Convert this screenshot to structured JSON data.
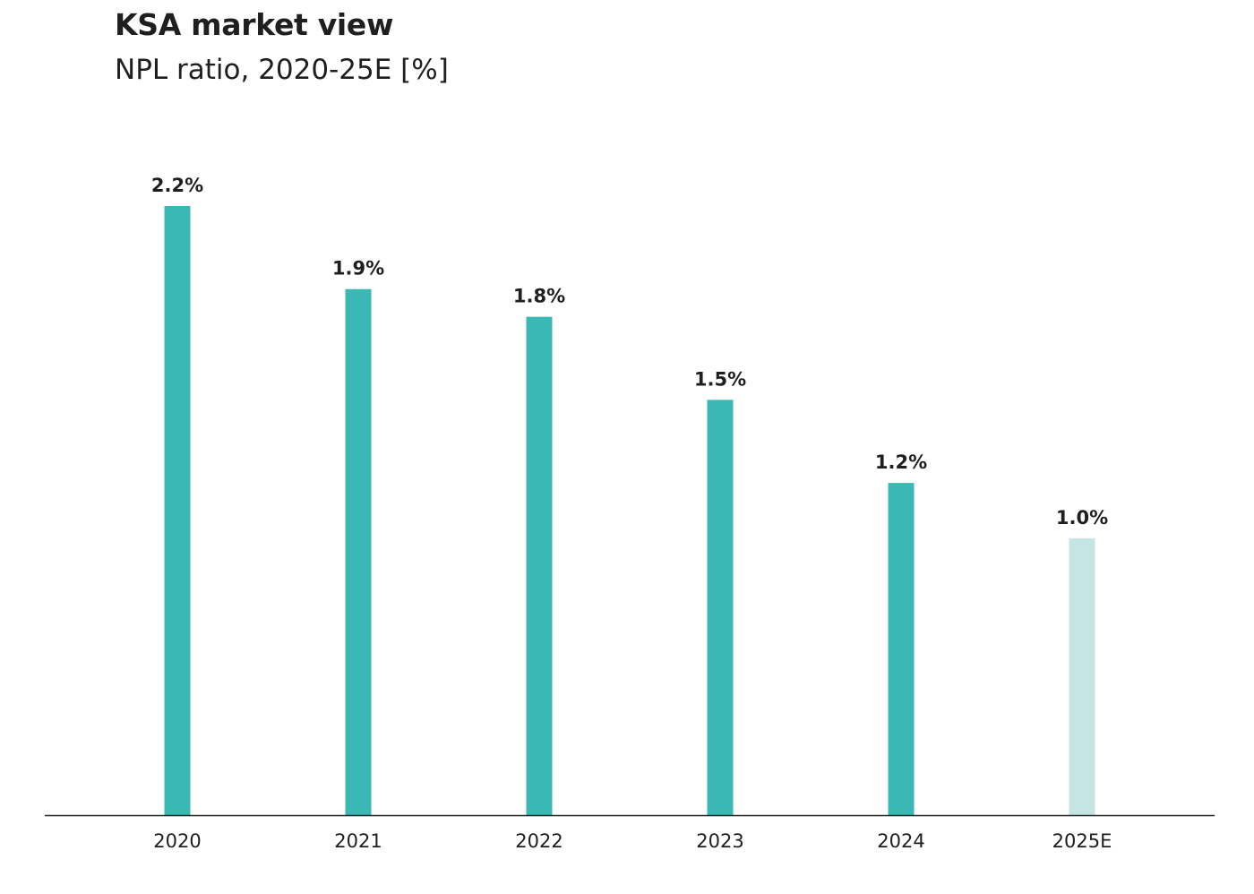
{
  "header": {
    "title": "KSA market view",
    "subtitle": "NPL ratio, 2020-25E [%]"
  },
  "colors": {
    "actual": "#3ab9b4",
    "estimate": "#c3e5e4",
    "axis": "#1f1f1f",
    "text": "#1f1f1f"
  },
  "chart_data": {
    "type": "bar",
    "title": "KSA market view",
    "subtitle": "NPL ratio, 2020-25E [%]",
    "categories": [
      "2020",
      "2021",
      "2022",
      "2023",
      "2024",
      "2025E"
    ],
    "values": [
      2.2,
      1.9,
      1.8,
      1.5,
      1.2,
      1.0
    ],
    "value_labels": [
      "2.2%",
      "1.9%",
      "1.8%",
      "1.5%",
      "1.2%",
      "1.0%"
    ],
    "estimate": [
      false,
      false,
      false,
      false,
      false,
      true
    ],
    "ylim": [
      0,
      2.2
    ],
    "xlabel": "",
    "ylabel": "",
    "grid": false,
    "legend": "none"
  }
}
